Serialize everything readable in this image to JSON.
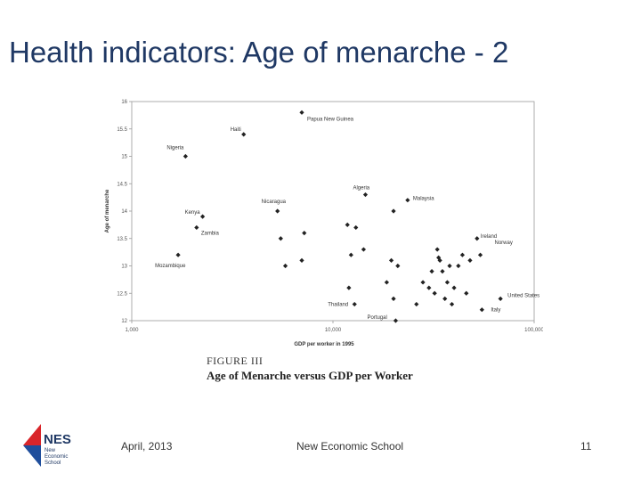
{
  "slide": {
    "title": "Health indicators: Age of menarche - 2",
    "figure_label": "FIGURE III",
    "figure_caption": "Age of Menarche versus GDP per Worker"
  },
  "footer": {
    "date": "April, 2013",
    "school": "New Economic School",
    "page_number": "11"
  },
  "logo": {
    "letters": "NES",
    "line1": "New",
    "line2": "Economic",
    "line3": "School",
    "colors": {
      "red": "#d9252a",
      "blue": "#1f4e9c",
      "text": "#1f3864"
    }
  },
  "chart_data": {
    "type": "scatter",
    "xlabel": "GDP per worker in 1995",
    "ylabel": "Age of menarche",
    "x_scale": "log",
    "xlim": [
      1000,
      100000
    ],
    "ylim": [
      12,
      16
    ],
    "x_ticks": [
      {
        "value": 1000,
        "label": "1,000"
      },
      {
        "value": 10000,
        "label": "10,000"
      },
      {
        "value": 100000,
        "label": "100,000"
      }
    ],
    "y_ticks": [
      {
        "value": 16,
        "label": "16"
      },
      {
        "value": 15.5,
        "label": "15.5"
      },
      {
        "value": 15,
        "label": "15"
      },
      {
        "value": 14.5,
        "label": "14.5"
      },
      {
        "value": 14,
        "label": "14"
      },
      {
        "value": 13.5,
        "label": "13.5"
      },
      {
        "value": 13,
        "label": "13"
      },
      {
        "value": 12.5,
        "label": "12.5"
      },
      {
        "value": 12,
        "label": "12"
      }
    ],
    "grid": false,
    "marker": "diamond",
    "labeled_points": [
      {
        "label": "Papua New Guinea",
        "x": 7000,
        "y": 15.8
      },
      {
        "label": "Haiti",
        "x": 3600,
        "y": 15.4
      },
      {
        "label": "Nigeria",
        "x": 1850,
        "y": 15.0
      },
      {
        "label": "Algeria",
        "x": 14500,
        "y": 14.3
      },
      {
        "label": "Malaysia",
        "x": 23500,
        "y": 14.2
      },
      {
        "label": "Nicaragua",
        "x": 5300,
        "y": 14.0
      },
      {
        "label": "Kenya",
        "x": 2250,
        "y": 13.9
      },
      {
        "label": "Zambia",
        "x": 2100,
        "y": 13.7
      },
      {
        "label": "Mozambique",
        "x": 1700,
        "y": 13.2
      },
      {
        "label": "Ireland",
        "x": 52000,
        "y": 13.5
      },
      {
        "label": "Norway",
        "x": 54000,
        "y": 13.2
      },
      {
        "label": "United States",
        "x": 68000,
        "y": 12.4
      },
      {
        "label": "Italy",
        "x": 55000,
        "y": 12.2
      },
      {
        "label": "Thailand",
        "x": 12800,
        "y": 12.3
      },
      {
        "label": "Portugal",
        "x": 20500,
        "y": 12.0
      }
    ],
    "points": [
      {
        "x": 5500,
        "y": 13.5
      },
      {
        "x": 7200,
        "y": 13.6
      },
      {
        "x": 5800,
        "y": 13.0
      },
      {
        "x": 7000,
        "y": 13.1
      },
      {
        "x": 11800,
        "y": 13.75
      },
      {
        "x": 13000,
        "y": 13.7
      },
      {
        "x": 12300,
        "y": 13.2
      },
      {
        "x": 14200,
        "y": 13.3
      },
      {
        "x": 20000,
        "y": 14.0
      },
      {
        "x": 19500,
        "y": 13.1
      },
      {
        "x": 21000,
        "y": 13.0
      },
      {
        "x": 12000,
        "y": 12.6
      },
      {
        "x": 18500,
        "y": 12.7
      },
      {
        "x": 20000,
        "y": 12.4
      },
      {
        "x": 26000,
        "y": 12.3
      },
      {
        "x": 28000,
        "y": 12.7
      },
      {
        "x": 30000,
        "y": 12.6
      },
      {
        "x": 32000,
        "y": 12.5
      },
      {
        "x": 33000,
        "y": 13.3
      },
      {
        "x": 34000,
        "y": 13.1
      },
      {
        "x": 35000,
        "y": 12.9
      },
      {
        "x": 36000,
        "y": 12.4
      },
      {
        "x": 37000,
        "y": 12.7
      },
      {
        "x": 38000,
        "y": 13.0
      },
      {
        "x": 40000,
        "y": 12.6
      },
      {
        "x": 42000,
        "y": 13.0
      },
      {
        "x": 44000,
        "y": 13.2
      },
      {
        "x": 46000,
        "y": 12.5
      },
      {
        "x": 48000,
        "y": 13.1
      },
      {
        "x": 33500,
        "y": 13.15
      },
      {
        "x": 31000,
        "y": 12.9
      },
      {
        "x": 39000,
        "y": 12.3
      }
    ]
  }
}
